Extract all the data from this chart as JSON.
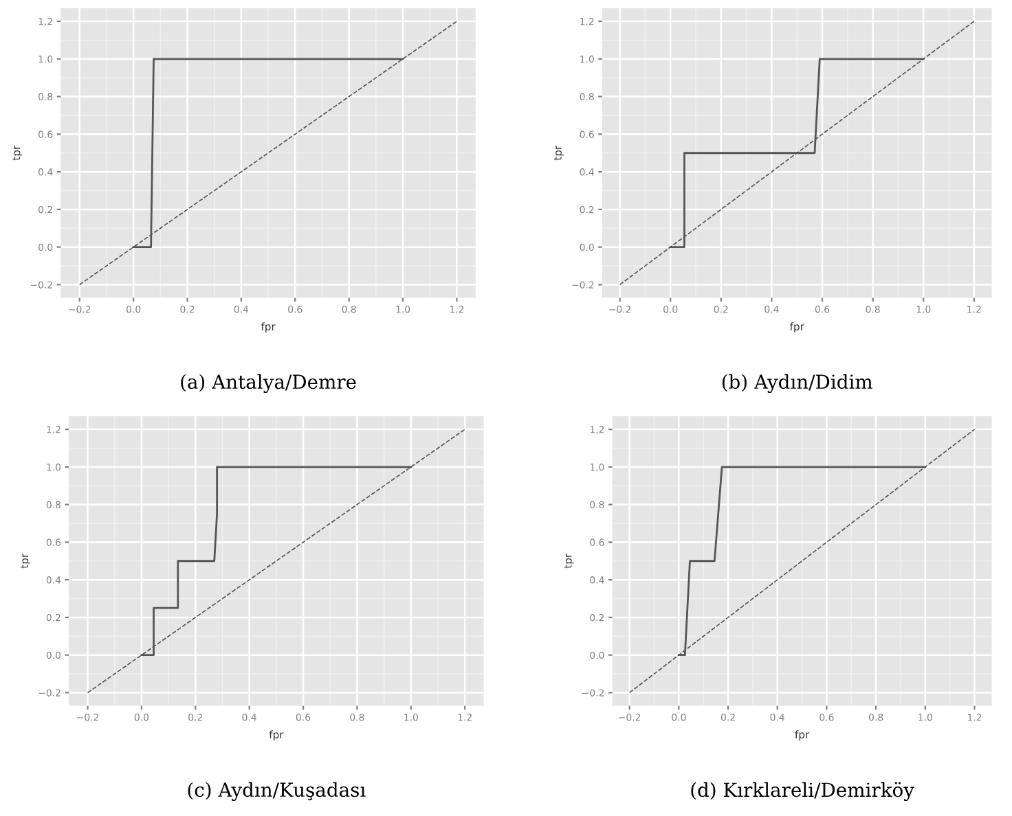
{
  "chart_data": [
    {
      "type": "line",
      "title": "(a) Antalya/Demre",
      "xlabel": "fpr",
      "ylabel": "tpr",
      "xlim": [
        -0.27,
        1.27
      ],
      "ylim": [
        -0.27,
        1.27
      ],
      "xticks": [
        {
          "value": -0.2,
          "label": "−0.2"
        },
        {
          "value": 0,
          "label": "0.0"
        },
        0.2,
        0.4,
        0.6,
        0.8,
        {
          "value": 1,
          "label": "1.0"
        },
        1.2
      ],
      "yticks": [
        {
          "value": -0.2,
          "label": "−0.2"
        },
        {
          "value": 0,
          "label": "0.0"
        },
        0.2,
        0.4,
        0.6,
        0.8,
        {
          "value": 1,
          "label": "1.0"
        },
        1.2
      ],
      "grid": true,
      "series": [
        {
          "color": "#555555",
          "line_style": "solid",
          "x": [
            0,
            0.065,
            0.075,
            1.0
          ],
          "values": [
            0,
            0,
            1.0,
            1.0
          ]
        },
        {
          "color": "#555555",
          "line_style": "dashed",
          "x": [
            -0.2,
            1.2
          ],
          "values": [
            -0.2,
            1.2
          ]
        }
      ]
    },
    {
      "type": "line",
      "title": "(b) Aydın/Didim",
      "xlabel": "fpr",
      "ylabel": "tpr",
      "xlim": [
        -0.27,
        1.27
      ],
      "ylim": [
        -0.27,
        1.27
      ],
      "xticks": [
        {
          "value": -0.2,
          "label": "−0.2"
        },
        {
          "value": 0,
          "label": "0.0"
        },
        0.2,
        0.4,
        0.6,
        0.8,
        {
          "value": 1,
          "label": "1.0"
        },
        1.2
      ],
      "yticks": [
        {
          "value": -0.2,
          "label": "−0.2"
        },
        {
          "value": 0,
          "label": "0.0"
        },
        0.2,
        0.4,
        0.6,
        0.8,
        {
          "value": 1,
          "label": "1.0"
        },
        1.2
      ],
      "grid": true,
      "series": [
        {
          "color": "#555555",
          "line_style": "solid",
          "x": [
            0,
            0.055,
            0.055,
            0.57,
            0.59,
            1.0
          ],
          "values": [
            0,
            0,
            0.5,
            0.5,
            1.0,
            1.0
          ]
        },
        {
          "color": "#555555",
          "line_style": "dashed",
          "x": [
            -0.2,
            1.2
          ],
          "values": [
            -0.2,
            1.2
          ]
        }
      ]
    },
    {
      "type": "line",
      "title": "(c) Aydın/Kuşadası",
      "xlabel": "fpr",
      "ylabel": "tpr",
      "xlim": [
        -0.27,
        1.27
      ],
      "ylim": [
        -0.27,
        1.27
      ],
      "xticks": [
        {
          "value": -0.2,
          "label": "−0.2"
        },
        {
          "value": 0,
          "label": "0.0"
        },
        0.2,
        0.4,
        0.6,
        0.8,
        {
          "value": 1,
          "label": "1.0"
        },
        1.2
      ],
      "yticks": [
        {
          "value": -0.2,
          "label": "−0.2"
        },
        {
          "value": 0,
          "label": "0.0"
        },
        0.2,
        0.4,
        0.6,
        0.8,
        {
          "value": 1,
          "label": "1.0"
        },
        1.2
      ],
      "grid": true,
      "series": [
        {
          "color": "#555555",
          "line_style": "solid",
          "x": [
            0,
            0.045,
            0.045,
            0.135,
            0.135,
            0.27,
            0.28,
            0.28,
            1.0
          ],
          "values": [
            0,
            0,
            0.25,
            0.25,
            0.5,
            0.5,
            0.75,
            1.0,
            1.0
          ]
        },
        {
          "color": "#555555",
          "line_style": "dashed",
          "x": [
            -0.2,
            1.2
          ],
          "values": [
            -0.2,
            1.2
          ]
        }
      ]
    },
    {
      "type": "line",
      "title": "(d) Kırklareli/Demirköy",
      "xlabel": "fpr",
      "ylabel": "tpr",
      "xlim": [
        -0.27,
        1.27
      ],
      "ylim": [
        -0.27,
        1.27
      ],
      "xticks": [
        {
          "value": -0.2,
          "label": "−0.2"
        },
        {
          "value": 0,
          "label": "0.0"
        },
        0.2,
        0.4,
        0.6,
        0.8,
        {
          "value": 1,
          "label": "1.0"
        },
        1.2
      ],
      "yticks": [
        {
          "value": -0.2,
          "label": "−0.2"
        },
        {
          "value": 0,
          "label": "0.0"
        },
        0.2,
        0.4,
        0.6,
        0.8,
        {
          "value": 1,
          "label": "1.0"
        },
        1.2
      ],
      "grid": true,
      "series": [
        {
          "color": "#555555",
          "line_style": "solid",
          "x": [
            0,
            0.025,
            0.045,
            0.145,
            0.175,
            1.0
          ],
          "values": [
            0,
            0,
            0.5,
            0.5,
            1.0,
            1.0
          ]
        },
        {
          "color": "#555555",
          "line_style": "dashed",
          "x": [
            -0.2,
            1.2
          ],
          "values": [
            -0.2,
            1.2
          ]
        }
      ]
    }
  ]
}
